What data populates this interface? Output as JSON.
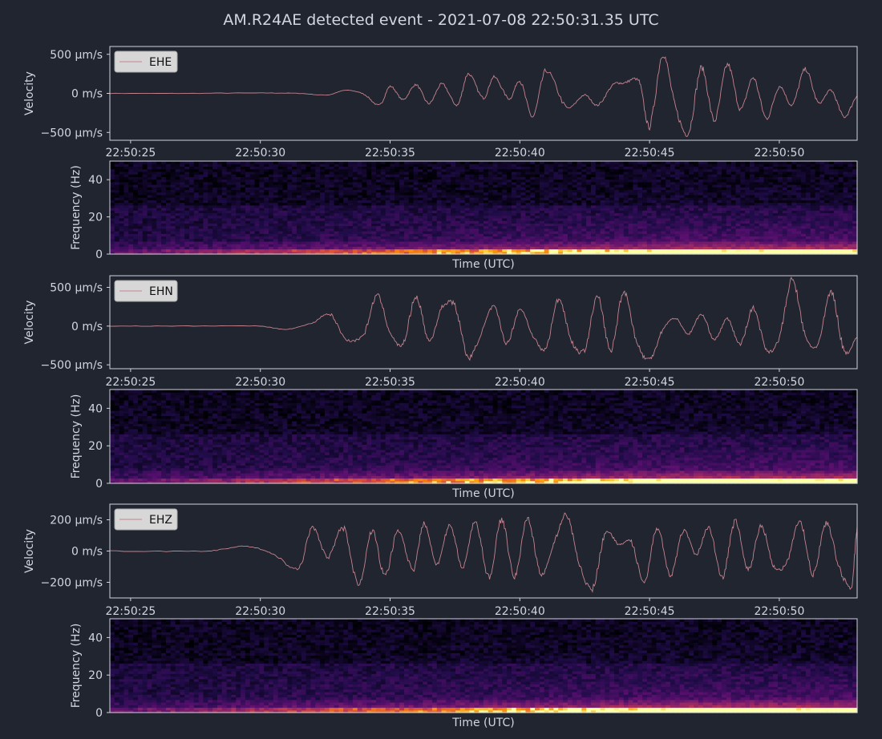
{
  "title": "AM.R24AE detected event - 2021-07-08 22:50:31.35 UTC",
  "colors": {
    "background": "#202530",
    "trace": "#c4848f",
    "axes": "#d0d4dc",
    "text": "#d2d6de",
    "legend_bg": "#d7d7d7"
  },
  "chart_data": [
    {
      "type": "line",
      "channel": "EHE",
      "legend": "EHE",
      "ylabel": "Velocity",
      "ylim": [
        -600,
        600
      ],
      "yticks": [
        {
          "v": 500,
          "label": "500 µm/s"
        },
        {
          "v": 0,
          "label": "0 m/s"
        },
        {
          "v": -500,
          "label": "−500 µm/s"
        }
      ],
      "xlim": [
        24.2,
        53
      ],
      "xticks": [
        "22:50:25",
        "22:50:30",
        "22:50:35",
        "22:50:40",
        "22:50:45",
        "22:50:50"
      ],
      "x": [
        24.2,
        27,
        30,
        31.5,
        32.6,
        33.3,
        34,
        34.6,
        35,
        35.5,
        36,
        36.5,
        37,
        37.6,
        38,
        38.6,
        39,
        39.6,
        40,
        40.5,
        41,
        41.8,
        42.5,
        43,
        43.6,
        44,
        44.6,
        45,
        45.5,
        46,
        46.5,
        47,
        47.5,
        48,
        48.5,
        49,
        49.5,
        50,
        50.5,
        51,
        51.5,
        52,
        52.5,
        53
      ],
      "y": [
        0,
        0,
        5,
        0,
        -20,
        40,
        -10,
        -150,
        90,
        -80,
        110,
        -130,
        120,
        -150,
        250,
        -60,
        210,
        -70,
        160,
        -300,
        290,
        -180,
        -20,
        -150,
        110,
        130,
        150,
        -420,
        500,
        -180,
        -500,
        330,
        -350,
        370,
        -200,
        200,
        -320,
        90,
        -150,
        310,
        -120,
        40,
        -300,
        -30
      ]
    },
    {
      "type": "heatmap",
      "channel": "EHE",
      "ylabel": "Frequency (Hz)",
      "xlabel": "Time (UTC)",
      "ylim": [
        0,
        50
      ],
      "yticks": [
        0,
        20,
        40
      ],
      "colormap": "inferno"
    },
    {
      "type": "line",
      "channel": "EHN",
      "legend": "EHN",
      "ylabel": "Velocity",
      "ylim": [
        -550,
        650
      ],
      "yticks": [
        {
          "v": 500,
          "label": "500 µm/s"
        },
        {
          "v": 0,
          "label": "0 m/s"
        },
        {
          "v": -500,
          "label": "−500 µm/s"
        }
      ],
      "xlim": [
        24.2,
        53
      ],
      "xticks": [
        "22:50:25",
        "22:50:30",
        "22:50:35",
        "22:50:40",
        "22:50:45",
        "22:50:50"
      ],
      "x": [
        24.2,
        27,
        30,
        31,
        32,
        32.7,
        33.3,
        34,
        34.5,
        35,
        35.5,
        36,
        36.5,
        37,
        37.5,
        38,
        38.5,
        39,
        39.5,
        40,
        40.5,
        41,
        41.5,
        42,
        42.5,
        43,
        43.5,
        44,
        44.5,
        45,
        45.5,
        46,
        46.5,
        47,
        47.5,
        48,
        48.5,
        49,
        49.5,
        50,
        50.5,
        51,
        51.5,
        52,
        52.5,
        53
      ],
      "y": [
        0,
        0,
        0,
        -40,
        40,
        150,
        -170,
        -100,
        400,
        -80,
        -230,
        380,
        -190,
        240,
        260,
        -400,
        -100,
        250,
        -220,
        220,
        -120,
        -290,
        350,
        -200,
        -300,
        380,
        -320,
        450,
        -200,
        -430,
        -50,
        100,
        -100,
        150,
        -170,
        90,
        -230,
        230,
        -300,
        -150,
        600,
        -130,
        -230,
        440,
        -320,
        -150
      ]
    },
    {
      "type": "heatmap",
      "channel": "EHN",
      "ylabel": "Frequency (Hz)",
      "xlabel": "Time (UTC)",
      "ylim": [
        0,
        50
      ],
      "yticks": [
        0,
        20,
        40
      ],
      "colormap": "inferno"
    },
    {
      "type": "line",
      "channel": "EHZ",
      "legend": "EHZ",
      "ylabel": "Velocity",
      "ylim": [
        -300,
        300
      ],
      "yticks": [
        {
          "v": 200,
          "label": "200 µm/s"
        },
        {
          "v": 0,
          "label": "0 m/s"
        },
        {
          "v": -200,
          "label": "−200 µm/s"
        }
      ],
      "xlim": [
        24.2,
        53
      ],
      "xticks": [
        "22:50:25",
        "22:50:30",
        "22:50:35",
        "22:50:40",
        "22:50:45",
        "22:50:50"
      ],
      "x": [
        24.2,
        28,
        29.5,
        30.5,
        31.5,
        32,
        32.6,
        33.2,
        33.8,
        34.3,
        34.8,
        35.3,
        35.9,
        36.3,
        36.8,
        37.3,
        37.8,
        38.3,
        38.8,
        39.3,
        39.8,
        40.3,
        40.8,
        41.3,
        41.8,
        42.3,
        42.8,
        43.3,
        43.8,
        44.3,
        44.8,
        45.3,
        45.8,
        46.3,
        46.8,
        47.3,
        47.8,
        48.3,
        48.8,
        49.3,
        49.8,
        50.3,
        50.8,
        51.3,
        51.8,
        52.3,
        52.8,
        53
      ],
      "y": [
        0,
        0,
        30,
        -20,
        -110,
        150,
        -40,
        150,
        -220,
        130,
        -160,
        130,
        -120,
        180,
        -80,
        160,
        -100,
        190,
        -170,
        200,
        -160,
        210,
        -150,
        40,
        230,
        -80,
        -240,
        120,
        40,
        60,
        -200,
        150,
        -160,
        130,
        -20,
        150,
        -170,
        190,
        -120,
        160,
        -100,
        -70,
        190,
        -150,
        180,
        -100,
        -220,
        160
      ]
    },
    {
      "type": "heatmap",
      "channel": "EHZ",
      "ylabel": "Frequency (Hz)",
      "xlabel": "Time (UTC)",
      "ylim": [
        0,
        50
      ],
      "yticks": [
        0,
        20,
        40
      ],
      "colormap": "inferno"
    }
  ]
}
